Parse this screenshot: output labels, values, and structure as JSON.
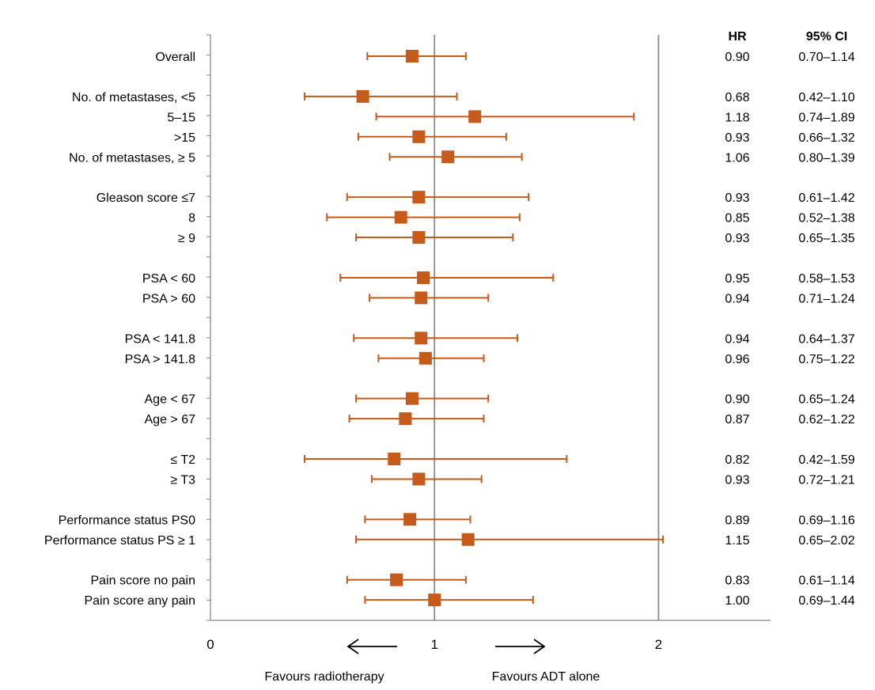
{
  "chart_data": {
    "type": "forest",
    "xlim": [
      0,
      2.5
    ],
    "reference_line": 1,
    "extra_vline": 2,
    "x_ticks": [
      "0",
      "1",
      "2"
    ],
    "columns": {
      "hr": "HR",
      "ci": "95% CI"
    },
    "favours_left": "Favours radiotherapy",
    "favours_right": "Favours ADT alone",
    "marker_color": "#c55a1b",
    "line_color": "#c55a1b",
    "rows": [
      {
        "label": "Overall",
        "hr": 0.9,
        "lo": 0.7,
        "hi": 1.14,
        "hr_text": "0.90",
        "ci_text": "0.70–1.14"
      },
      null,
      {
        "label": "No. of metastases, <5",
        "hr": 0.68,
        "lo": 0.42,
        "hi": 1.1,
        "hr_text": "0.68",
        "ci_text": "0.42–1.10"
      },
      {
        "label": "5–15",
        "hr": 1.18,
        "lo": 0.74,
        "hi": 1.89,
        "hr_text": "1.18",
        "ci_text": "0.74–1.89"
      },
      {
        "label": ">15",
        "hr": 0.93,
        "lo": 0.66,
        "hi": 1.32,
        "hr_text": "0.93",
        "ci_text": "0.66–1.32"
      },
      {
        "label": "No. of metastases, ≥ 5",
        "hr": 1.06,
        "lo": 0.8,
        "hi": 1.39,
        "hr_text": "1.06",
        "ci_text": "0.80–1.39"
      },
      null,
      {
        "label": "Gleason score ≤7",
        "hr": 0.93,
        "lo": 0.61,
        "hi": 1.42,
        "hr_text": "0.93",
        "ci_text": "0.61–1.42"
      },
      {
        "label": "8",
        "hr": 0.85,
        "lo": 0.52,
        "hi": 1.38,
        "hr_text": "0.85",
        "ci_text": "0.52–1.38"
      },
      {
        "label": "≥ 9",
        "hr": 0.93,
        "lo": 0.65,
        "hi": 1.35,
        "hr_text": "0.93",
        "ci_text": "0.65–1.35"
      },
      null,
      {
        "label": "PSA < 60",
        "hr": 0.95,
        "lo": 0.58,
        "hi": 1.53,
        "hr_text": "0.95",
        "ci_text": "0.58–1.53"
      },
      {
        "label": "PSA > 60",
        "hr": 0.94,
        "lo": 0.71,
        "hi": 1.24,
        "hr_text": "0.94",
        "ci_text": "0.71–1.24"
      },
      null,
      {
        "label": "PSA < 141.8",
        "hr": 0.94,
        "lo": 0.64,
        "hi": 1.37,
        "hr_text": "0.94",
        "ci_text": "0.64–1.37"
      },
      {
        "label": "PSA > 141.8",
        "hr": 0.96,
        "lo": 0.75,
        "hi": 1.22,
        "hr_text": "0.96",
        "ci_text": "0.75–1.22"
      },
      null,
      {
        "label": "Age < 67",
        "hr": 0.9,
        "lo": 0.65,
        "hi": 1.24,
        "hr_text": "0.90",
        "ci_text": "0.65–1.24"
      },
      {
        "label": "Age > 67",
        "hr": 0.87,
        "lo": 0.62,
        "hi": 1.22,
        "hr_text": "0.87",
        "ci_text": "0.62–1.22"
      },
      null,
      {
        "label": "≤ T2",
        "hr": 0.82,
        "lo": 0.42,
        "hi": 1.59,
        "hr_text": "0.82",
        "ci_text": "0.42–1.59"
      },
      {
        "label": "≥ T3",
        "hr": 0.93,
        "lo": 0.72,
        "hi": 1.21,
        "hr_text": "0.93",
        "ci_text": "0.72–1.21"
      },
      null,
      {
        "label": "Performance status PS0",
        "hr": 0.89,
        "lo": 0.69,
        "hi": 1.16,
        "hr_text": "0.89",
        "ci_text": "0.69–1.16"
      },
      {
        "label": "Performance status PS ≥ 1",
        "hr": 1.15,
        "lo": 0.65,
        "hi": 2.02,
        "hr_text": "1.15",
        "ci_text": "0.65–2.02"
      },
      null,
      {
        "label": "Pain score no pain",
        "hr": 0.83,
        "lo": 0.61,
        "hi": 1.14,
        "hr_text": "0.83",
        "ci_text": "0.61–1.14"
      },
      {
        "label": "Pain score any pain",
        "hr": 1.0,
        "lo": 0.69,
        "hi": 1.44,
        "hr_text": "1.00",
        "ci_text": "0.69–1.44"
      }
    ]
  }
}
